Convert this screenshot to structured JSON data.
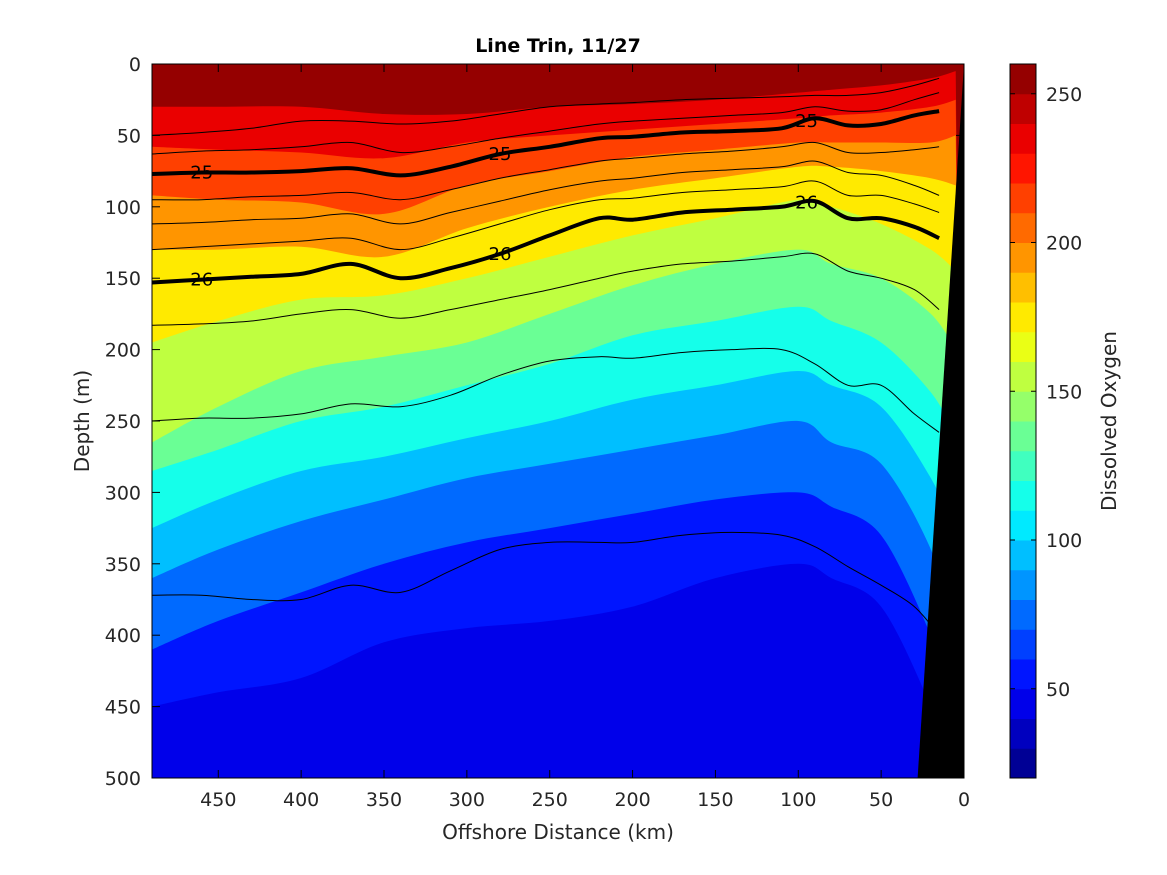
{
  "figure": {
    "title": "Line Trin, 11/27"
  },
  "chart_data": {
    "type": "heatmap",
    "title": "Line Trin, 11/27",
    "xlabel": "Offshore Distance (km)",
    "ylabel": "Depth (m)",
    "xlim": [
      490,
      0
    ],
    "ylim": [
      0,
      500
    ],
    "x_reversed": true,
    "y_reversed": true,
    "xticks": [
      450,
      400,
      350,
      300,
      250,
      200,
      150,
      100,
      50,
      0
    ],
    "yticks": [
      0,
      50,
      100,
      150,
      200,
      250,
      300,
      350,
      400,
      450,
      500
    ],
    "colorbar": {
      "label": "Dissolved Oxygen",
      "range": [
        20,
        260
      ],
      "ticks": [
        50,
        100,
        150,
        200,
        250
      ],
      "levels": 24,
      "colormap": "jet"
    },
    "oxygen_depth_by_level": {
      "distance_km": [
        490,
        450,
        400,
        350,
        300,
        250,
        200,
        150,
        100,
        80,
        50,
        20,
        5
      ],
      "contours": [
        {
          "value": 240,
          "depth_m": [
            30,
            30,
            30,
            35,
            35,
            30,
            28,
            25,
            20,
            18,
            15,
            10,
            5
          ]
        },
        {
          "value": 220,
          "depth_m": [
            58,
            60,
            62,
            66,
            55,
            50,
            46,
            42,
            38,
            36,
            34,
            30,
            25
          ]
        },
        {
          "value": 200,
          "depth_m": [
            92,
            95,
            97,
            105,
            85,
            75,
            65,
            60,
            55,
            55,
            55,
            55,
            50
          ]
        },
        {
          "value": 180,
          "depth_m": [
            130,
            130,
            128,
            135,
            115,
            100,
            88,
            80,
            72,
            72,
            75,
            80,
            85
          ]
        },
        {
          "value": 160,
          "depth_m": [
            195,
            180,
            165,
            162,
            150,
            135,
            120,
            108,
            95,
            100,
            112,
            130,
            145
          ]
        },
        {
          "value": 140,
          "depth_m": [
            265,
            240,
            215,
            205,
            195,
            175,
            155,
            140,
            130,
            140,
            150,
            175,
            200
          ]
        },
        {
          "value": 120,
          "depth_m": [
            285,
            270,
            250,
            240,
            225,
            210,
            190,
            180,
            170,
            180,
            195,
            230,
            260
          ]
        },
        {
          "value": 100,
          "depth_m": [
            325,
            305,
            285,
            275,
            262,
            250,
            235,
            225,
            215,
            225,
            240,
            290,
            330
          ]
        },
        {
          "value": 80,
          "depth_m": [
            360,
            340,
            320,
            305,
            290,
            280,
            270,
            260,
            250,
            265,
            280,
            340,
            400
          ]
        },
        {
          "value": 60,
          "depth_m": [
            410,
            390,
            370,
            350,
            335,
            325,
            315,
            305,
            300,
            310,
            330,
            400,
            450
          ]
        },
        {
          "value": 50,
          "depth_m": [
            450,
            440,
            430,
            405,
            395,
            390,
            380,
            360,
            350,
            360,
            380,
            450,
            500
          ]
        }
      ]
    },
    "density_isolines": {
      "distance_km": [
        490,
        460,
        430,
        400,
        370,
        340,
        310,
        280,
        250,
        220,
        200,
        170,
        140,
        110,
        90,
        70,
        50,
        30,
        15
      ],
      "lines": [
        {
          "label": "25",
          "bold": true,
          "depth_m": [
            77,
            76,
            76,
            75,
            73,
            78,
            72,
            63,
            58,
            52,
            51,
            48,
            47,
            45,
            38,
            43,
            42,
            36,
            33
          ]
        },
        {
          "label": "26",
          "bold": true,
          "depth_m": [
            153,
            151,
            149,
            147,
            140,
            150,
            143,
            133,
            120,
            108,
            109,
            104,
            102,
            100,
            96,
            108,
            108,
            114,
            122
          ]
        },
        {
          "label": "",
          "bold": false,
          "depth_m": [
            50,
            48,
            45,
            40,
            40,
            42,
            40,
            35,
            30,
            28,
            27,
            25,
            24,
            23,
            22,
            22,
            20,
            15,
            10
          ]
        },
        {
          "label": "",
          "bold": false,
          "depth_m": [
            63,
            61,
            60,
            58,
            55,
            62,
            58,
            52,
            47,
            42,
            40,
            38,
            36,
            34,
            30,
            33,
            32,
            25,
            20
          ]
        },
        {
          "label": "",
          "bold": false,
          "depth_m": [
            95,
            95,
            93,
            92,
            90,
            95,
            88,
            80,
            74,
            68,
            66,
            63,
            61,
            58,
            55,
            62,
            62,
            60,
            58
          ]
        },
        {
          "label": "",
          "bold": false,
          "depth_m": [
            112,
            111,
            109,
            108,
            105,
            112,
            104,
            96,
            88,
            82,
            80,
            76,
            74,
            72,
            68,
            76,
            78,
            85,
            92
          ]
        },
        {
          "label": "",
          "bold": false,
          "depth_m": [
            130,
            128,
            126,
            124,
            122,
            130,
            122,
            112,
            102,
            95,
            94,
            90,
            88,
            86,
            82,
            92,
            92,
            98,
            104
          ]
        },
        {
          "label": "",
          "bold": false,
          "depth_m": [
            183,
            182,
            180,
            175,
            172,
            178,
            172,
            165,
            158,
            150,
            145,
            140,
            138,
            135,
            133,
            145,
            150,
            158,
            172
          ]
        },
        {
          "label": "",
          "bold": false,
          "depth_m": [
            250,
            248,
            248,
            245,
            238,
            240,
            232,
            218,
            208,
            205,
            206,
            202,
            200,
            200,
            210,
            225,
            225,
            245,
            258
          ]
        },
        {
          "label": "",
          "bold": false,
          "depth_m": [
            372,
            372,
            375,
            375,
            365,
            370,
            355,
            340,
            335,
            335,
            335,
            330,
            328,
            330,
            338,
            352,
            365,
            380,
            400
          ]
        }
      ]
    },
    "bathymetry": {
      "fill": "#000000",
      "surface_distance_km": 0,
      "bottom_distance_km": 28
    }
  }
}
